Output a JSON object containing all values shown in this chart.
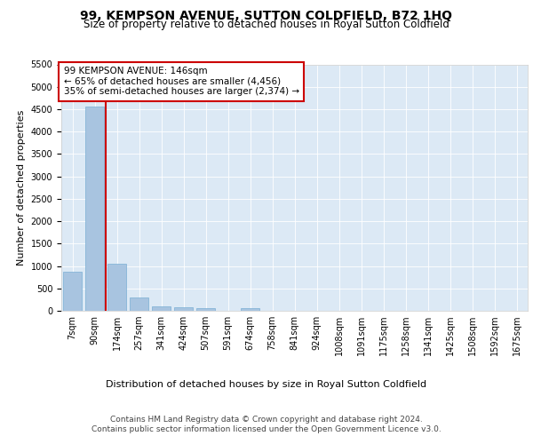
{
  "title": "99, KEMPSON AVENUE, SUTTON COLDFIELD, B72 1HQ",
  "subtitle": "Size of property relative to detached houses in Royal Sutton Coldfield",
  "xlabel": "Distribution of detached houses by size in Royal Sutton Coldfield",
  "ylabel": "Number of detached properties",
  "categories": [
    "7sqm",
    "90sqm",
    "174sqm",
    "257sqm",
    "341sqm",
    "424sqm",
    "507sqm",
    "591sqm",
    "674sqm",
    "758sqm",
    "841sqm",
    "924sqm",
    "1008sqm",
    "1091sqm",
    "1175sqm",
    "1258sqm",
    "1341sqm",
    "1425sqm",
    "1508sqm",
    "1592sqm",
    "1675sqm"
  ],
  "values": [
    880,
    4560,
    1060,
    300,
    100,
    70,
    60,
    0,
    65,
    0,
    0,
    0,
    0,
    0,
    0,
    0,
    0,
    0,
    0,
    0,
    0
  ],
  "bar_color": "#a8c4e0",
  "bar_edge_color": "#7aafd4",
  "vline_color": "#cc0000",
  "annotation_text": "99 KEMPSON AVENUE: 146sqm\n← 65% of detached houses are smaller (4,456)\n35% of semi-detached houses are larger (2,374) →",
  "annotation_box_color": "#ffffff",
  "annotation_box_edge_color": "#cc0000",
  "ylim": [
    0,
    5500
  ],
  "yticks": [
    0,
    500,
    1000,
    1500,
    2000,
    2500,
    3000,
    3500,
    4000,
    4500,
    5000,
    5500
  ],
  "plot_bg_color": "#dce9f5",
  "footer_line1": "Contains HM Land Registry data © Crown copyright and database right 2024.",
  "footer_line2": "Contains public sector information licensed under the Open Government Licence v3.0.",
  "title_fontsize": 10,
  "subtitle_fontsize": 8.5,
  "annotation_fontsize": 7.5,
  "tick_fontsize": 7,
  "ylabel_fontsize": 8,
  "xlabel_fontsize": 8
}
